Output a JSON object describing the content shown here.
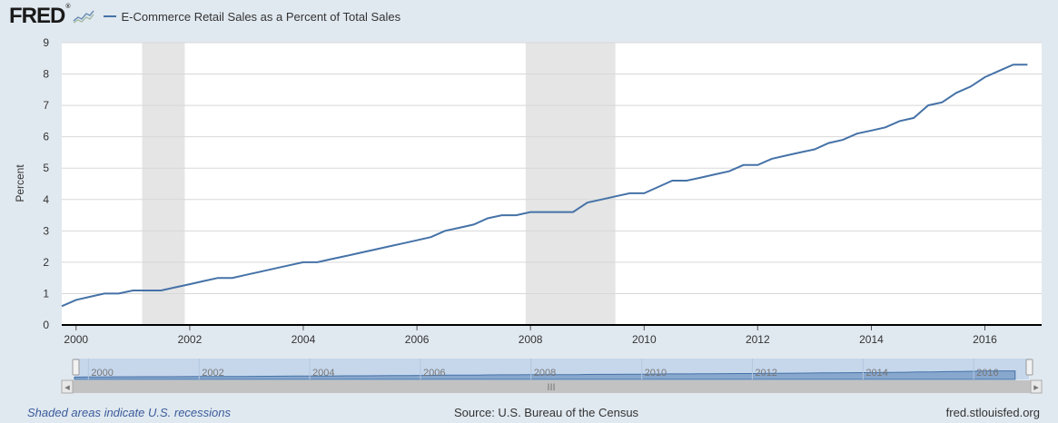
{
  "header": {
    "logo_text": "FRED",
    "logo_mark": "®",
    "legend_label": "E-Commerce Retail Sales as a Percent of Total Sales",
    "series_color": "#4572a7"
  },
  "footer": {
    "recession_note": "Shaded areas indicate U.S. recessions",
    "source": "Source: U.S. Bureau of the Census",
    "site": "fred.stlouisfed.org"
  },
  "navigator": {
    "grip_icon": "grip-icon",
    "left_arrow_icon": "arrow-left-icon",
    "right_arrow_icon": "arrow-right-icon",
    "grip_glyph": "III",
    "left_arrow_glyph": "◂",
    "right_arrow_glyph": "▸"
  },
  "chart_data": {
    "type": "line",
    "title": "E-Commerce Retail Sales as a Percent of Total Sales",
    "ylabel": "Percent",
    "xlabel": "",
    "ylim": [
      0,
      9
    ],
    "xlim": [
      "1999-10-01",
      "2016-12-31"
    ],
    "y_ticks": [
      "0",
      "1",
      "2",
      "3",
      "4",
      "5",
      "6",
      "7",
      "8",
      "9"
    ],
    "x_ticks": [
      "2000",
      "2002",
      "2004",
      "2006",
      "2008",
      "2010",
      "2012",
      "2014",
      "2016"
    ],
    "grid": true,
    "recessions": [
      {
        "start": "2001-03-01",
        "end": "2001-11-30"
      },
      {
        "start": "2007-12-01",
        "end": "2009-06-30"
      }
    ],
    "series": [
      {
        "name": "E-Commerce Retail Sales as a Percent of Total Sales",
        "x": [
          "1999-10-01",
          "2000-01-01",
          "2000-04-01",
          "2000-07-01",
          "2000-10-01",
          "2001-01-01",
          "2001-04-01",
          "2001-07-01",
          "2001-10-01",
          "2002-01-01",
          "2002-04-01",
          "2002-07-01",
          "2002-10-01",
          "2003-01-01",
          "2003-04-01",
          "2003-07-01",
          "2003-10-01",
          "2004-01-01",
          "2004-04-01",
          "2004-07-01",
          "2004-10-01",
          "2005-01-01",
          "2005-04-01",
          "2005-07-01",
          "2005-10-01",
          "2006-01-01",
          "2006-04-01",
          "2006-07-01",
          "2006-10-01",
          "2007-01-01",
          "2007-04-01",
          "2007-07-01",
          "2007-10-01",
          "2008-01-01",
          "2008-04-01",
          "2008-07-01",
          "2008-10-01",
          "2009-01-01",
          "2009-04-01",
          "2009-07-01",
          "2009-10-01",
          "2010-01-01",
          "2010-04-01",
          "2010-07-01",
          "2010-10-01",
          "2011-01-01",
          "2011-04-01",
          "2011-07-01",
          "2011-10-01",
          "2012-01-01",
          "2012-04-01",
          "2012-07-01",
          "2012-10-01",
          "2013-01-01",
          "2013-04-01",
          "2013-07-01",
          "2013-10-01",
          "2014-01-01",
          "2014-04-01",
          "2014-07-01",
          "2014-10-01",
          "2015-01-01",
          "2015-04-01",
          "2015-07-01",
          "2015-10-01",
          "2016-01-01",
          "2016-04-01",
          "2016-07-01",
          "2016-10-01"
        ],
        "values": [
          0.6,
          0.8,
          0.9,
          1.0,
          1.0,
          1.1,
          1.1,
          1.1,
          1.2,
          1.3,
          1.4,
          1.5,
          1.5,
          1.6,
          1.7,
          1.8,
          1.9,
          2.0,
          2.0,
          2.1,
          2.2,
          2.3,
          2.4,
          2.5,
          2.6,
          2.7,
          2.8,
          3.0,
          3.1,
          3.2,
          3.4,
          3.5,
          3.5,
          3.6,
          3.6,
          3.6,
          3.6,
          3.9,
          4.0,
          4.1,
          4.2,
          4.2,
          4.4,
          4.6,
          4.6,
          4.7,
          4.8,
          4.9,
          5.1,
          5.1,
          5.3,
          5.4,
          5.5,
          5.6,
          5.8,
          5.9,
          6.1,
          6.2,
          6.3,
          6.5,
          6.6,
          7.0,
          7.1,
          7.4,
          7.6,
          7.9,
          8.1,
          8.3,
          8.3
        ]
      }
    ]
  }
}
